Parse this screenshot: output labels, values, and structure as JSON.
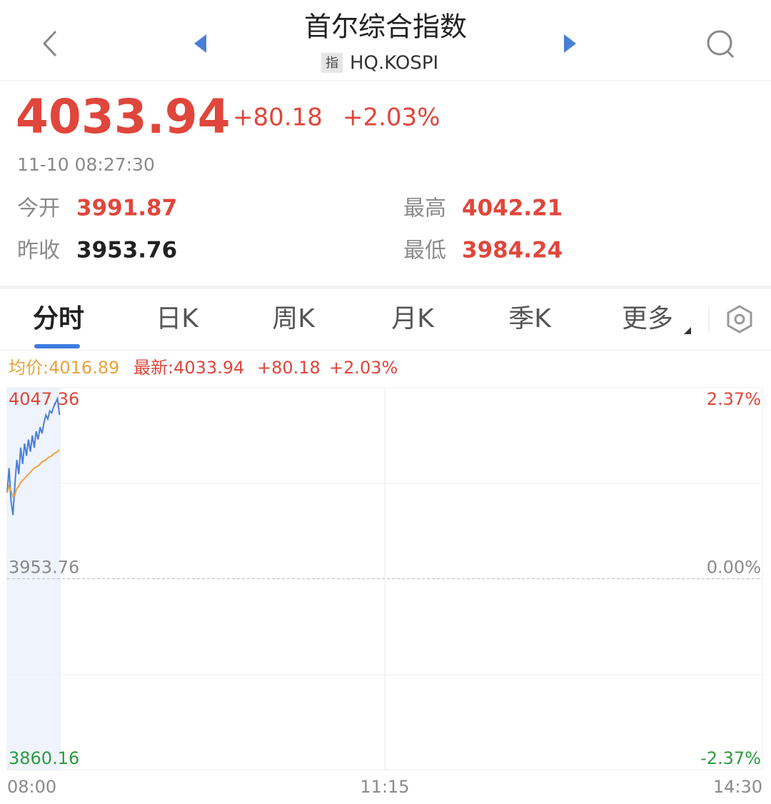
{
  "header": {
    "title": "首尔综合指数",
    "badge": "指",
    "code": "HQ.KOSPI"
  },
  "quote": {
    "price": "4033.94",
    "change": "+80.18",
    "change_pct": "+2.03%",
    "time": "11-10 08:27:30"
  },
  "stats": [
    {
      "label": "今开",
      "value": "3991.87",
      "color": "#e0463b"
    },
    {
      "label": "最高",
      "value": "4042.21",
      "color": "#e0463b"
    },
    {
      "label": "昨收",
      "value": "3953.76",
      "color": "#222222"
    },
    {
      "label": "最低",
      "value": "3984.24",
      "color": "#e0463b"
    }
  ],
  "tabs": [
    "分时",
    "日K",
    "周K",
    "月K",
    "季K",
    "更多"
  ],
  "chart_data": {
    "type": "line",
    "summary": {
      "avg": "均价:4016.89",
      "last": "最新:4033.94",
      "change": "+80.18",
      "change_pct": "+2.03%"
    },
    "x": [
      "08:00",
      "08:01",
      "08:02",
      "08:03",
      "08:04",
      "08:05",
      "08:06",
      "08:07",
      "08:08",
      "08:09",
      "08:10",
      "08:11",
      "08:12",
      "08:13",
      "08:14",
      "08:15",
      "08:16",
      "08:17",
      "08:18",
      "08:19",
      "08:20",
      "08:21",
      "08:22",
      "08:23",
      "08:24",
      "08:25",
      "08:26",
      "08:27"
    ],
    "xlim": [
      "08:00",
      "14:30"
    ],
    "xticks": [
      "08:00",
      "11:15",
      "14:30"
    ],
    "ylim": [
      3860.16,
      4047.36
    ],
    "yticks": [
      3860.16,
      3953.76,
      4047.36
    ],
    "y2lim": [
      -2.37,
      2.37
    ],
    "y2ticks": [
      {
        "value": -2.37,
        "label": "-2.37%"
      },
      {
        "value": 0,
        "label": "0.00%"
      },
      {
        "value": 2.37,
        "label": "2.37%"
      }
    ],
    "series": [
      {
        "color": "#4a7fd8",
        "values": [
          3996,
          4008,
          3992,
          3985,
          4000,
          4012,
          4005,
          4018,
          4010,
          4020,
          4014,
          4022,
          4016,
          4024,
          4018,
          4026,
          4022,
          4028,
          4025,
          4030,
          4034,
          4032,
          4036,
          4035,
          4038,
          4040,
          4042,
          4034
        ]
      },
      {
        "color": "#f0a23a",
        "values": [
          3996,
          3999,
          3997,
          3994,
          3995,
          3998,
          3999,
          4001,
          4002,
          4003,
          4004,
          4005,
          4006,
          4007,
          4008,
          4008.5,
          4009,
          4010,
          4011,
          4011.5,
          4012,
          4013,
          4013.5,
          4014,
          4015,
          4015.5,
          4016,
          4016.89
        ]
      }
    ]
  }
}
